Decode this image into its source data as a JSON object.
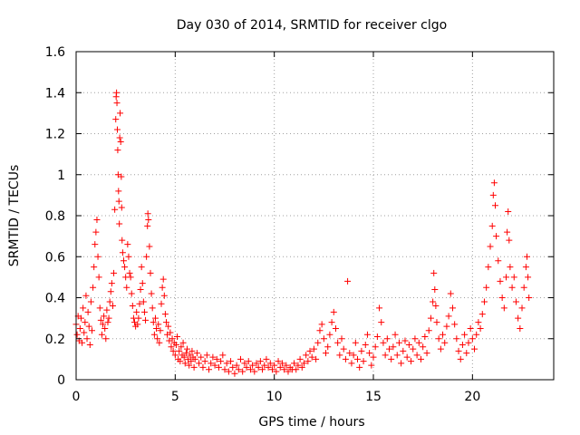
{
  "chart_data": {
    "type": "scatter",
    "title": "Day 030 of 2014, SRMTID for receiver clgo",
    "xlabel": "GPS time / hours",
    "ylabel": "SRMTID / TECUs",
    "xlim": [
      0,
      24.1
    ],
    "ylim": [
      0,
      1.6
    ],
    "grid": true,
    "x_ticks": [
      0,
      5,
      10,
      15,
      20
    ],
    "x_tick_labels": [
      "0",
      "5",
      "10",
      "15",
      "20"
    ],
    "y_ticks": [
      0,
      0.2,
      0.4,
      0.6,
      0.8,
      1.0,
      1.2,
      1.4,
      1.6
    ],
    "y_tick_labels": [
      "0",
      "0.2",
      "0.4",
      "0.6",
      "0.8",
      "1",
      "1.2",
      "1.4",
      "1.6"
    ],
    "marker": "+",
    "color": "#ff0000",
    "series": [
      {
        "name": "SRMTID",
        "points": [
          [
            0.0,
            0.27
          ],
          [
            0.05,
            0.22
          ],
          [
            0.1,
            0.31
          ],
          [
            0.15,
            0.19
          ],
          [
            0.2,
            0.25
          ],
          [
            0.25,
            0.3
          ],
          [
            0.3,
            0.18
          ],
          [
            0.35,
            0.35
          ],
          [
            0.4,
            0.23
          ],
          [
            0.45,
            0.28
          ],
          [
            0.5,
            0.41
          ],
          [
            0.55,
            0.2
          ],
          [
            0.6,
            0.33
          ],
          [
            0.65,
            0.26
          ],
          [
            0.7,
            0.17
          ],
          [
            0.75,
            0.38
          ],
          [
            0.8,
            0.24
          ],
          [
            0.85,
            0.45
          ],
          [
            0.9,
            0.55
          ],
          [
            0.95,
            0.66
          ],
          [
            1.0,
            0.72
          ],
          [
            1.05,
            0.78
          ],
          [
            1.1,
            0.6
          ],
          [
            1.15,
            0.5
          ],
          [
            1.2,
            0.35
          ],
          [
            1.25,
            0.29
          ],
          [
            1.3,
            0.22
          ],
          [
            1.35,
            0.27
          ],
          [
            1.4,
            0.31
          ],
          [
            1.45,
            0.25
          ],
          [
            1.5,
            0.2
          ],
          [
            1.55,
            0.34
          ],
          [
            1.6,
            0.28
          ],
          [
            1.65,
            0.3
          ],
          [
            1.7,
            0.38
          ],
          [
            1.75,
            0.43
          ],
          [
            1.8,
            0.47
          ],
          [
            1.85,
            0.36
          ],
          [
            1.9,
            0.52
          ],
          [
            1.95,
            0.83
          ],
          [
            2.0,
            1.27
          ],
          [
            2.02,
            1.38
          ],
          [
            2.04,
            1.4
          ],
          [
            2.06,
            1.35
          ],
          [
            2.08,
            1.22
          ],
          [
            2.1,
            1.12
          ],
          [
            2.12,
            1.0
          ],
          [
            2.14,
            0.92
          ],
          [
            2.16,
            0.87
          ],
          [
            2.18,
            0.76
          ],
          [
            2.2,
            1.18
          ],
          [
            2.22,
            1.3
          ],
          [
            2.25,
            1.16
          ],
          [
            2.28,
            0.99
          ],
          [
            2.3,
            0.84
          ],
          [
            2.32,
            0.68
          ],
          [
            2.35,
            0.62
          ],
          [
            2.4,
            0.58
          ],
          [
            2.45,
            0.55
          ],
          [
            2.5,
            0.5
          ],
          [
            2.55,
            0.45
          ],
          [
            2.6,
            0.66
          ],
          [
            2.65,
            0.6
          ],
          [
            2.7,
            0.52
          ],
          [
            2.75,
            0.5
          ],
          [
            2.8,
            0.42
          ],
          [
            2.85,
            0.36
          ],
          [
            2.9,
            0.3
          ],
          [
            2.95,
            0.28
          ],
          [
            3.0,
            0.26
          ],
          [
            3.05,
            0.33
          ],
          [
            3.1,
            0.27
          ],
          [
            3.15,
            0.3
          ],
          [
            3.2,
            0.37
          ],
          [
            3.25,
            0.44
          ],
          [
            3.3,
            0.55
          ],
          [
            3.35,
            0.47
          ],
          [
            3.4,
            0.38
          ],
          [
            3.45,
            0.33
          ],
          [
            3.5,
            0.29
          ],
          [
            3.55,
            0.6
          ],
          [
            3.6,
            0.75
          ],
          [
            3.62,
            0.81
          ],
          [
            3.65,
            0.78
          ],
          [
            3.7,
            0.65
          ],
          [
            3.75,
            0.52
          ],
          [
            3.8,
            0.42
          ],
          [
            3.85,
            0.35
          ],
          [
            3.9,
            0.28
          ],
          [
            3.95,
            0.22
          ],
          [
            4.0,
            0.3
          ],
          [
            4.05,
            0.25
          ],
          [
            4.1,
            0.2
          ],
          [
            4.15,
            0.27
          ],
          [
            4.2,
            0.18
          ],
          [
            4.25,
            0.24
          ],
          [
            4.3,
            0.37
          ],
          [
            4.35,
            0.45
          ],
          [
            4.4,
            0.49
          ],
          [
            4.45,
            0.41
          ],
          [
            4.5,
            0.32
          ],
          [
            4.55,
            0.28
          ],
          [
            4.6,
            0.22
          ],
          [
            4.65,
            0.26
          ],
          [
            4.7,
            0.19
          ],
          [
            4.75,
            0.23
          ],
          [
            4.8,
            0.16
          ],
          [
            4.85,
            0.2
          ],
          [
            4.9,
            0.14
          ],
          [
            4.95,
            0.18
          ],
          [
            5.0,
            0.12
          ],
          [
            5.05,
            0.17
          ],
          [
            5.1,
            0.21
          ],
          [
            5.15,
            0.1
          ],
          [
            5.2,
            0.14
          ],
          [
            5.25,
            0.09
          ],
          [
            5.3,
            0.16
          ],
          [
            5.35,
            0.12
          ],
          [
            5.4,
            0.18
          ],
          [
            5.45,
            0.11
          ],
          [
            5.5,
            0.08
          ],
          [
            5.55,
            0.13
          ],
          [
            5.6,
            0.15
          ],
          [
            5.65,
            0.1
          ],
          [
            5.7,
            0.07
          ],
          [
            5.75,
            0.12
          ],
          [
            5.8,
            0.09
          ],
          [
            5.85,
            0.14
          ],
          [
            5.9,
            0.11
          ],
          [
            5.95,
            0.06
          ],
          [
            6.0,
            0.1
          ],
          [
            6.1,
            0.13
          ],
          [
            6.2,
            0.08
          ],
          [
            6.3,
            0.11
          ],
          [
            6.4,
            0.06
          ],
          [
            6.5,
            0.09
          ],
          [
            6.6,
            0.12
          ],
          [
            6.7,
            0.05
          ],
          [
            6.8,
            0.08
          ],
          [
            6.9,
            0.11
          ],
          [
            7.0,
            0.07
          ],
          [
            7.1,
            0.1
          ],
          [
            7.2,
            0.06
          ],
          [
            7.3,
            0.09
          ],
          [
            7.4,
            0.12
          ],
          [
            7.5,
            0.05
          ],
          [
            7.6,
            0.08
          ],
          [
            7.7,
            0.04
          ],
          [
            7.8,
            0.09
          ],
          [
            7.9,
            0.06
          ],
          [
            8.0,
            0.03
          ],
          [
            8.1,
            0.07
          ],
          [
            8.2,
            0.05
          ],
          [
            8.3,
            0.1
          ],
          [
            8.4,
            0.04
          ],
          [
            8.5,
            0.08
          ],
          [
            8.6,
            0.06
          ],
          [
            8.7,
            0.09
          ],
          [
            8.8,
            0.05
          ],
          [
            8.9,
            0.07
          ],
          [
            9.0,
            0.04
          ],
          [
            9.1,
            0.08
          ],
          [
            9.2,
            0.06
          ],
          [
            9.3,
            0.09
          ],
          [
            9.4,
            0.05
          ],
          [
            9.5,
            0.07
          ],
          [
            9.6,
            0.1
          ],
          [
            9.7,
            0.06
          ],
          [
            9.8,
            0.08
          ],
          [
            9.9,
            0.05
          ],
          [
            10.0,
            0.07
          ],
          [
            10.1,
            0.04
          ],
          [
            10.2,
            0.09
          ],
          [
            10.3,
            0.06
          ],
          [
            10.4,
            0.08
          ],
          [
            10.5,
            0.05
          ],
          [
            10.6,
            0.07
          ],
          [
            10.7,
            0.04
          ],
          [
            10.8,
            0.06
          ],
          [
            10.9,
            0.05
          ],
          [
            11.0,
            0.08
          ],
          [
            11.1,
            0.05
          ],
          [
            11.2,
            0.07
          ],
          [
            11.3,
            0.1
          ],
          [
            11.4,
            0.06
          ],
          [
            11.5,
            0.08
          ],
          [
            11.6,
            0.12
          ],
          [
            11.7,
            0.09
          ],
          [
            11.8,
            0.14
          ],
          [
            11.9,
            0.11
          ],
          [
            12.0,
            0.15
          ],
          [
            12.1,
            0.1
          ],
          [
            12.2,
            0.18
          ],
          [
            12.3,
            0.24
          ],
          [
            12.4,
            0.27
          ],
          [
            12.5,
            0.2
          ],
          [
            12.6,
            0.13
          ],
          [
            12.7,
            0.16
          ],
          [
            12.8,
            0.22
          ],
          [
            12.9,
            0.28
          ],
          [
            13.0,
            0.33
          ],
          [
            13.1,
            0.25
          ],
          [
            13.2,
            0.18
          ],
          [
            13.3,
            0.12
          ],
          [
            13.4,
            0.2
          ],
          [
            13.5,
            0.15
          ],
          [
            13.6,
            0.1
          ],
          [
            13.7,
            0.48
          ],
          [
            13.8,
            0.13
          ],
          [
            13.9,
            0.08
          ],
          [
            14.0,
            0.12
          ],
          [
            14.1,
            0.18
          ],
          [
            14.2,
            0.1
          ],
          [
            14.3,
            0.06
          ],
          [
            14.4,
            0.14
          ],
          [
            14.5,
            0.09
          ],
          [
            14.6,
            0.17
          ],
          [
            14.7,
            0.22
          ],
          [
            14.8,
            0.13
          ],
          [
            14.9,
            0.07
          ],
          [
            15.0,
            0.11
          ],
          [
            15.1,
            0.16
          ],
          [
            15.2,
            0.21
          ],
          [
            15.3,
            0.35
          ],
          [
            15.4,
            0.28
          ],
          [
            15.5,
            0.18
          ],
          [
            15.6,
            0.12
          ],
          [
            15.7,
            0.2
          ],
          [
            15.8,
            0.15
          ],
          [
            15.9,
            0.1
          ],
          [
            16.0,
            0.16
          ],
          [
            16.1,
            0.22
          ],
          [
            16.2,
            0.12
          ],
          [
            16.3,
            0.18
          ],
          [
            16.4,
            0.08
          ],
          [
            16.5,
            0.14
          ],
          [
            16.6,
            0.19
          ],
          [
            16.7,
            0.11
          ],
          [
            16.8,
            0.17
          ],
          [
            16.9,
            0.09
          ],
          [
            17.0,
            0.15
          ],
          [
            17.1,
            0.2
          ],
          [
            17.2,
            0.12
          ],
          [
            17.3,
            0.18
          ],
          [
            17.4,
            0.1
          ],
          [
            17.5,
            0.16
          ],
          [
            17.6,
            0.21
          ],
          [
            17.7,
            0.13
          ],
          [
            17.8,
            0.24
          ],
          [
            17.9,
            0.3
          ],
          [
            18.0,
            0.38
          ],
          [
            18.05,
            0.52
          ],
          [
            18.1,
            0.44
          ],
          [
            18.15,
            0.36
          ],
          [
            18.2,
            0.28
          ],
          [
            18.3,
            0.2
          ],
          [
            18.4,
            0.15
          ],
          [
            18.5,
            0.22
          ],
          [
            18.6,
            0.18
          ],
          [
            18.7,
            0.26
          ],
          [
            18.8,
            0.31
          ],
          [
            18.9,
            0.42
          ],
          [
            19.0,
            0.35
          ],
          [
            19.1,
            0.27
          ],
          [
            19.2,
            0.2
          ],
          [
            19.3,
            0.14
          ],
          [
            19.4,
            0.1
          ],
          [
            19.5,
            0.17
          ],
          [
            19.6,
            0.22
          ],
          [
            19.7,
            0.13
          ],
          [
            19.8,
            0.18
          ],
          [
            19.9,
            0.25
          ],
          [
            20.0,
            0.2
          ],
          [
            20.1,
            0.15
          ],
          [
            20.2,
            0.22
          ],
          [
            20.3,
            0.28
          ],
          [
            20.4,
            0.25
          ],
          [
            20.5,
            0.32
          ],
          [
            20.6,
            0.38
          ],
          [
            20.7,
            0.45
          ],
          [
            20.8,
            0.55
          ],
          [
            20.9,
            0.65
          ],
          [
            21.0,
            0.75
          ],
          [
            21.05,
            0.9
          ],
          [
            21.1,
            0.96
          ],
          [
            21.15,
            0.85
          ],
          [
            21.2,
            0.7
          ],
          [
            21.3,
            0.58
          ],
          [
            21.4,
            0.48
          ],
          [
            21.5,
            0.4
          ],
          [
            21.6,
            0.35
          ],
          [
            21.7,
            0.5
          ],
          [
            21.75,
            0.72
          ],
          [
            21.8,
            0.82
          ],
          [
            21.85,
            0.68
          ],
          [
            21.9,
            0.55
          ],
          [
            22.0,
            0.45
          ],
          [
            22.1,
            0.5
          ],
          [
            22.2,
            0.38
          ],
          [
            22.3,
            0.3
          ],
          [
            22.4,
            0.25
          ],
          [
            22.5,
            0.35
          ],
          [
            22.6,
            0.45
          ],
          [
            22.7,
            0.55
          ],
          [
            22.75,
            0.6
          ],
          [
            22.8,
            0.5
          ],
          [
            22.85,
            0.4
          ]
        ]
      }
    ]
  }
}
